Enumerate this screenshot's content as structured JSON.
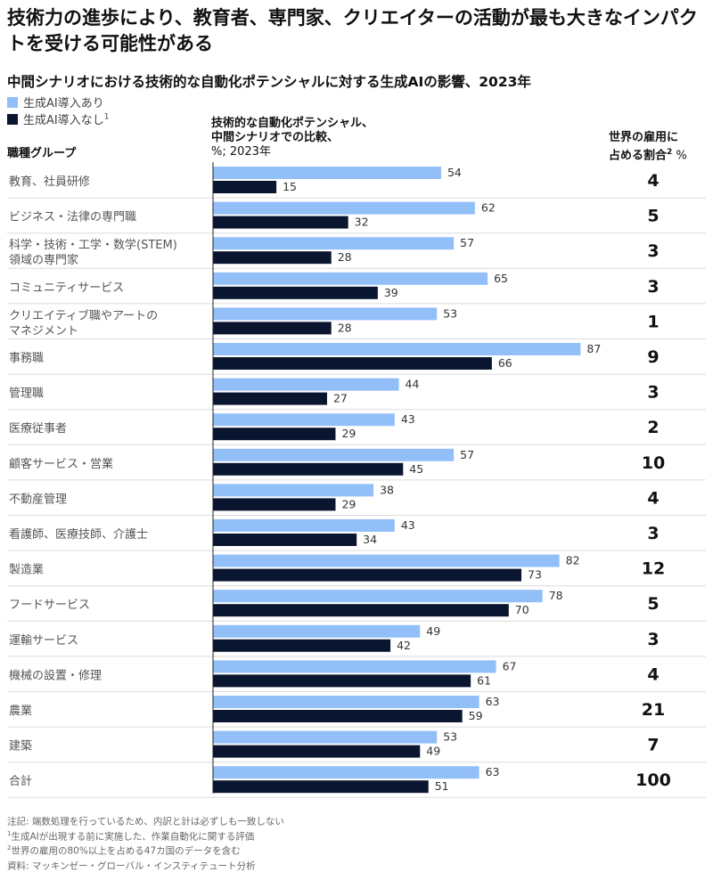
{
  "title": "技術力の進歩により、教育者、専門家、クリエイターの活動が最も大きなインパクトを受ける可能性がある",
  "subtitle": "中間シナリオにおける技術的な自動化ポテンシャルに対する生成AIの影響、2023年",
  "legend": {
    "with_genai": "生成AI導入あり",
    "without_genai": "生成AI導入なし",
    "without_genai_note": "1"
  },
  "headers": {
    "group": "職種グループ",
    "potential_line1": "技術的な自動化ポテンシャル、",
    "potential_line2": "中間シナリオでの比較、",
    "potential_line3": "%; 2023年",
    "share_line1": "世界の雇用に",
    "share_line2": "占める割合",
    "share_note": "2",
    "share_unit": " %"
  },
  "colors": {
    "with_genai": "#93bff9",
    "without_genai": "#0a1530"
  },
  "chart_data": {
    "type": "bar",
    "orientation": "horizontal",
    "categories": [
      [
        "教育、社員研修"
      ],
      [
        "ビジネス・法律の専門職"
      ],
      [
        "科学・技術・工学・数学(STEM)",
        "領域の専門家"
      ],
      [
        "コミュニティサービス"
      ],
      [
        "クリエイティブ職やアートの",
        "マネジメント"
      ],
      [
        "事務職"
      ],
      [
        "管理職"
      ],
      [
        "医療従事者"
      ],
      [
        "顧客サービス・営業"
      ],
      [
        "不動産管理"
      ],
      [
        "看護師、医療技師、介護士"
      ],
      [
        "製造業"
      ],
      [
        "フードサービス"
      ],
      [
        "運輸サービス"
      ],
      [
        "機械の設置・修理"
      ],
      [
        "農業"
      ],
      [
        "建築"
      ],
      [
        "合計"
      ]
    ],
    "series": [
      {
        "name": "生成AI導入あり",
        "values": [
          54,
          62,
          57,
          65,
          53,
          87,
          44,
          43,
          57,
          38,
          43,
          82,
          78,
          49,
          67,
          63,
          53,
          63
        ]
      },
      {
        "name": "生成AI導入なし",
        "values": [
          15,
          32,
          28,
          39,
          28,
          66,
          27,
          29,
          45,
          29,
          34,
          73,
          70,
          42,
          61,
          59,
          49,
          51
        ]
      }
    ],
    "employment_share": [
      4,
      5,
      3,
      3,
      1,
      9,
      3,
      2,
      10,
      4,
      3,
      12,
      5,
      3,
      4,
      21,
      7,
      100
    ],
    "xlim": [
      0,
      100
    ]
  },
  "notes": [
    {
      "mark": "",
      "text": "注記: 端数処理を行っているため、内訳と計は必ずしも一致しない"
    },
    {
      "mark": "1",
      "text": "生成AIが出現する前に実施した、作業自動化に関する評価"
    },
    {
      "mark": "2",
      "text": "世界の雇用の80%以上を占める47カ国のデータを含む"
    },
    {
      "mark": "",
      "text": "資料: マッキンゼー・グローバル・インスティテュート分析"
    }
  ]
}
